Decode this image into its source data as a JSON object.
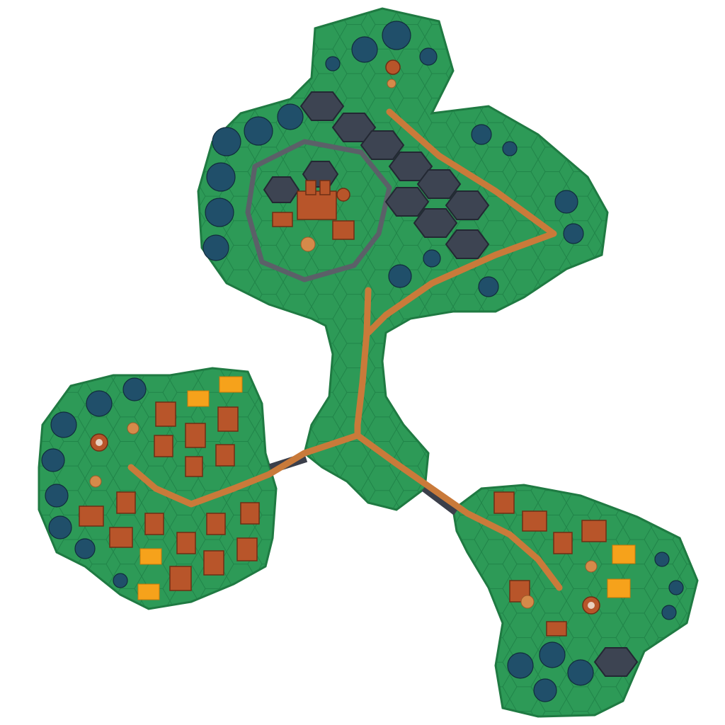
{
  "scene": {
    "type": "hex-tile island map (top-down 3D)",
    "colors": {
      "background": "#ffffff",
      "grass": "#2d9a57",
      "hex_lines": "#1d7e45",
      "road": "#c97a3a",
      "mountain": "#3d4452",
      "roof": "#b8552a",
      "field": "#f6a21b",
      "forest": "#1a5a4a"
    },
    "islands": [
      {
        "name": "north-island",
        "features": [
          "castle",
          "walls",
          "mountains",
          "forest",
          "road"
        ]
      },
      {
        "name": "west-island",
        "features": [
          "houses",
          "fields",
          "forest",
          "tower",
          "road"
        ]
      },
      {
        "name": "southeast-island",
        "features": [
          "houses",
          "fields",
          "forest",
          "tower",
          "mountain",
          "road"
        ]
      }
    ],
    "bridges": 2
  }
}
